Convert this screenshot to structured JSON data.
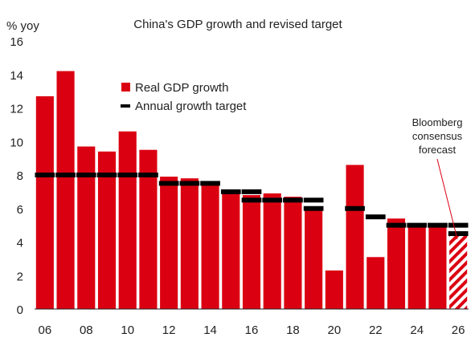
{
  "chart_data": {
    "type": "bar",
    "title": "China's GDP growth and revised target",
    "ylabel": "% yoy",
    "xlabel": "",
    "ylim": [
      0,
      16
    ],
    "yticks": [
      "0",
      "2",
      "4",
      "6",
      "8",
      "10",
      "12",
      "14",
      "16"
    ],
    "x_tick_labels": [
      "06",
      "08",
      "10",
      "12",
      "14",
      "16",
      "18",
      "20",
      "22",
      "24",
      "26"
    ],
    "grid": false,
    "legend_position": "top-left",
    "colors": {
      "bar": "#db0011",
      "target": "#000000",
      "forecast_hatch": "#db0011"
    },
    "x": [
      2006,
      2007,
      2008,
      2009,
      2010,
      2011,
      2012,
      2013,
      2014,
      2015,
      2016,
      2017,
      2018,
      2019,
      2020,
      2021,
      2022,
      2023,
      2024,
      2025,
      2026
    ],
    "series": [
      {
        "name": "Real GDP growth",
        "type": "bar",
        "values": [
          12.7,
          14.2,
          9.7,
          9.4,
          10.6,
          9.5,
          7.9,
          7.8,
          7.4,
          7.0,
          6.8,
          6.9,
          6.7,
          6.0,
          2.3,
          8.6,
          3.1,
          5.4,
          5.0,
          5.0,
          4.5
        ]
      },
      {
        "name": "Annual growth target",
        "type": "marker",
        "values": [
          8.0,
          8.0,
          8.0,
          8.0,
          8.0,
          8.0,
          7.5,
          7.5,
          7.5,
          7.0,
          6.5,
          6.5,
          6.5,
          6.0,
          null,
          6.0,
          5.5,
          5.0,
          5.0,
          5.0,
          5.0
        ],
        "values_secondary": [
          null,
          null,
          null,
          null,
          null,
          null,
          null,
          null,
          null,
          null,
          7.0,
          null,
          null,
          6.5,
          null,
          null,
          null,
          null,
          null,
          null,
          4.5
        ]
      }
    ],
    "forecast_index": 20,
    "annotation": [
      "Bloomberg",
      "consensus",
      "forecast"
    ]
  }
}
